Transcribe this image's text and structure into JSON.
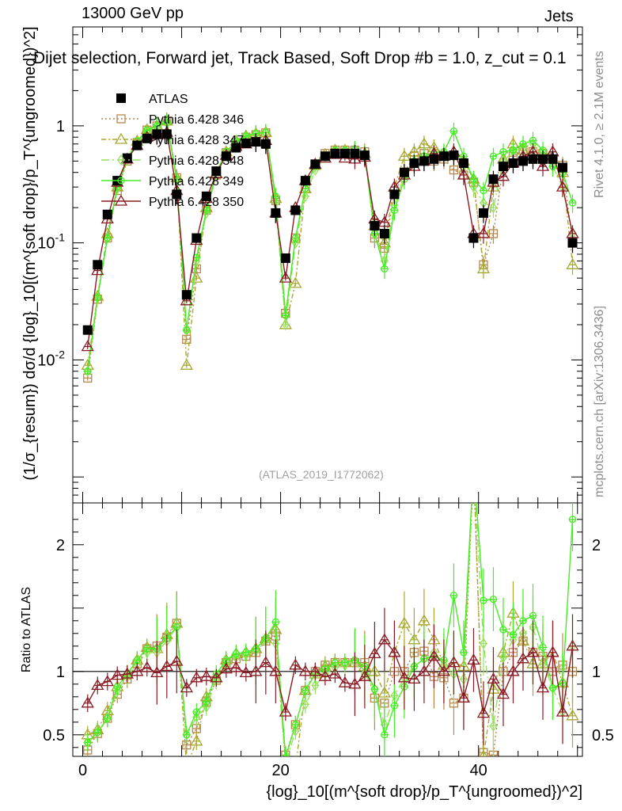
{
  "header": {
    "energy": "13000 GeV pp",
    "process": "Jets",
    "title": "Dijet selection, Forward jet, Track Based, Soft Drop #b = 1.0, z_cut = 0.1",
    "reference": "(ATLAS_2019_I1772062)"
  },
  "watermarks": {
    "rivet": "Rivet 4.1.0, ≥ 2.1M events",
    "site": "mcplots.cern.ch [arXiv:1306.3436]"
  },
  "chart_data": [
    {
      "type": "line",
      "panel": "main",
      "title": "Dijet selection, Forward jet, Track Based, Soft Drop #b = 1.0, z_cut = 0.1",
      "ylabel": "(1/σ_{resum}) dσ/d {log}_10[(m^{soft drop}/p_T^{ungroomed})^2]",
      "xlabel": "{log}_10[(m^{soft drop}/p_T^{ungroomed})^2]",
      "yscale": "log",
      "xlim": [
        -1,
        50.5
      ],
      "ylim": [
        0.0006,
        7
      ],
      "y_ticks": [
        {
          "v": 0.01,
          "label": "10^-2"
        },
        {
          "v": 0.1,
          "label": "10^-1"
        },
        {
          "v": 1,
          "label": "1"
        }
      ],
      "x": [
        0.5,
        1.5,
        2.5,
        3.5,
        4.5,
        5.5,
        6.5,
        7.5,
        8.5,
        9.5,
        10.5,
        11.5,
        12.5,
        13.5,
        14.5,
        15.5,
        16.5,
        17.5,
        18.5,
        19.5,
        20.5,
        21.5,
        22.5,
        23.5,
        24.5,
        25.5,
        26.5,
        27.5,
        28.5,
        29.5,
        30.5,
        31.5,
        32.5,
        33.5,
        34.5,
        35.5,
        36.5,
        37.5,
        38.5,
        39.5,
        40.5,
        41.5,
        42.5,
        43.5,
        44.5,
        45.5,
        46.5,
        47.5,
        48.5,
        49.5
      ],
      "series": [
        {
          "name": "ATLAS",
          "color": "#000000",
          "marker": "square-filled",
          "values": [
            0.018,
            0.065,
            0.175,
            0.34,
            0.53,
            0.68,
            0.78,
            0.85,
            0.85,
            0.26,
            0.036,
            0.11,
            0.25,
            0.41,
            0.55,
            0.65,
            0.71,
            0.73,
            0.7,
            0.18,
            0.074,
            0.19,
            0.34,
            0.47,
            0.55,
            0.58,
            0.58,
            0.58,
            0.56,
            0.14,
            0.12,
            0.26,
            0.4,
            0.48,
            0.5,
            0.52,
            0.55,
            0.56,
            0.48,
            0.11,
            0.18,
            0.35,
            0.45,
            0.48,
            0.5,
            0.52,
            0.52,
            0.52,
            0.44,
            0.1
          ]
        },
        {
          "name": "Pythia 6.428 346",
          "color": "#b8864b",
          "marker": "square-open",
          "dash": "2,3",
          "values": [
            0.007,
            0.033,
            0.11,
            0.28,
            0.5,
            0.72,
            0.92,
            1.0,
            1.1,
            0.36,
            0.015,
            0.06,
            0.19,
            0.38,
            0.59,
            0.72,
            0.8,
            0.84,
            0.87,
            0.23,
            0.025,
            0.11,
            0.29,
            0.47,
            0.58,
            0.62,
            0.62,
            0.62,
            0.6,
            0.11,
            0.09,
            0.26,
            0.4,
            0.55,
            0.58,
            0.5,
            0.52,
            0.42,
            0.38,
            0.33,
            0.065,
            0.12,
            0.45,
            0.55,
            0.62,
            0.6,
            0.58,
            0.52,
            0.46,
            0.1
          ]
        },
        {
          "name": "Pythia 6.428 347",
          "color": "#a8a830",
          "marker": "triangle-open",
          "dash": "6,3,2,3",
          "values": [
            0.009,
            0.035,
            0.12,
            0.3,
            0.52,
            0.74,
            0.93,
            1.0,
            1.1,
            0.36,
            0.009,
            0.05,
            0.2,
            0.39,
            0.6,
            0.74,
            0.82,
            0.86,
            0.88,
            0.24,
            0.02,
            0.045,
            0.29,
            0.46,
            0.57,
            0.62,
            0.62,
            0.62,
            0.58,
            0.14,
            0.1,
            0.3,
            0.55,
            0.6,
            0.7,
            0.65,
            0.58,
            0.6,
            0.5,
            0.35,
            0.06,
            0.3,
            0.52,
            0.7,
            0.62,
            0.55,
            0.55,
            0.6,
            0.4,
            0.065
          ]
        },
        {
          "name": "Pythia 6.428 348",
          "color": "#99e060",
          "marker": "diamond-open",
          "dash": "10,4,2,4",
          "values": [
            0.008,
            0.034,
            0.11,
            0.29,
            0.51,
            0.72,
            0.9,
            0.98,
            1.05,
            0.35,
            0.018,
            0.07,
            0.18,
            0.38,
            0.58,
            0.72,
            0.8,
            0.85,
            0.87,
            0.22,
            0.02,
            0.1,
            0.25,
            0.42,
            0.54,
            0.6,
            0.61,
            0.62,
            0.55,
            0.12,
            0.07,
            0.21,
            0.38,
            0.5,
            0.55,
            0.6,
            0.58,
            0.55,
            0.45,
            0.3,
            0.22,
            0.2,
            0.5,
            0.6,
            0.65,
            0.7,
            0.55,
            0.45,
            0.3,
            0.12
          ]
        },
        {
          "name": "Pythia 6.428 349",
          "color": "#44ee22",
          "marker": "circle-cross",
          "dash": "",
          "values": [
            0.008,
            0.034,
            0.11,
            0.3,
            0.52,
            0.74,
            0.92,
            1.0,
            1.07,
            0.35,
            0.018,
            0.075,
            0.19,
            0.4,
            0.6,
            0.74,
            0.82,
            0.86,
            0.88,
            0.25,
            0.024,
            0.11,
            0.29,
            0.46,
            0.56,
            0.62,
            0.62,
            0.63,
            0.58,
            0.12,
            0.06,
            0.19,
            0.35,
            0.5,
            0.55,
            0.58,
            0.6,
            0.9,
            0.55,
            0.35,
            0.28,
            0.55,
            0.6,
            0.62,
            0.7,
            0.75,
            0.62,
            0.45,
            0.4,
            0.22
          ]
        },
        {
          "name": "Pythia 6.428 350",
          "color": "#8b1a24",
          "marker": "triangle-open",
          "dash": "",
          "values": [
            0.013,
            0.058,
            0.16,
            0.33,
            0.52,
            0.68,
            0.8,
            0.84,
            0.88,
            0.28,
            0.032,
            0.105,
            0.24,
            0.39,
            0.56,
            0.67,
            0.7,
            0.73,
            0.75,
            0.18,
            0.05,
            0.2,
            0.34,
            0.47,
            0.53,
            0.57,
            0.53,
            0.52,
            0.54,
            0.16,
            0.15,
            0.3,
            0.38,
            0.45,
            0.5,
            0.58,
            0.55,
            0.6,
            0.38,
            0.12,
            0.12,
            0.33,
            0.37,
            0.48,
            0.55,
            0.6,
            0.45,
            0.6,
            0.3,
            0.12
          ]
        }
      ]
    },
    {
      "type": "line",
      "panel": "ratio",
      "ylabel": "Ratio to ATLAS",
      "xlabel": "{log}_10[(m^{soft drop}/p_T^{ungroomed})^2]",
      "xlim": [
        -1,
        50.5
      ],
      "ylim": [
        0.33,
        2.33
      ],
      "y_ticks": [
        {
          "v": 0.5,
          "label": "0.5"
        },
        {
          "v": 1,
          "label": "1"
        },
        {
          "v": 2,
          "label": "2"
        }
      ],
      "x_ticks": [
        {
          "v": 0,
          "label": "0"
        },
        {
          "v": 20,
          "label": "20"
        },
        {
          "v": 40,
          "label": "40"
        }
      ],
      "reference_line": 1,
      "series": [
        {
          "name": "Pythia 6.428 346",
          "color": "#b8864b",
          "marker": "square-open",
          "dash": "2,3",
          "values": [
            0.38,
            0.51,
            0.63,
            0.82,
            0.94,
            1.06,
            1.18,
            1.2,
            1.27,
            1.38,
            0.42,
            0.55,
            0.76,
            0.93,
            1.07,
            1.1,
            1.12,
            1.15,
            1.24,
            1.28,
            0.34,
            0.58,
            0.85,
            1.0,
            1.05,
            1.07,
            1.07,
            1.07,
            1.07,
            0.79,
            0.75,
            1.0,
            1.0,
            1.15,
            1.16,
            0.96,
            0.95,
            0.75,
            0.79,
            3.0,
            0.36,
            0.34,
            1.0,
            1.15,
            1.24,
            1.15,
            1.12,
            1.0,
            1.05,
            1.0
          ]
        },
        {
          "name": "Pythia 6.428 347",
          "color": "#a8a830",
          "marker": "triangle-open",
          "dash": "6,3,2,3",
          "values": [
            0.5,
            0.54,
            0.69,
            0.88,
            0.98,
            1.09,
            1.19,
            1.18,
            1.29,
            1.38,
            0.25,
            0.45,
            0.8,
            0.95,
            1.09,
            1.14,
            1.15,
            1.18,
            1.26,
            1.33,
            0.27,
            0.24,
            0.85,
            0.98,
            1.04,
            1.07,
            1.07,
            1.07,
            1.04,
            1.0,
            0.83,
            1.15,
            1.38,
            1.25,
            1.4,
            1.25,
            1.05,
            1.07,
            1.04,
            3.2,
            0.33,
            0.86,
            1.15,
            1.46,
            1.24,
            1.06,
            1.06,
            1.15,
            0.91,
            0.65
          ]
        },
        {
          "name": "Pythia 6.428 348",
          "color": "#99e060",
          "marker": "diamond-open",
          "dash": "10,4,2,4",
          "values": [
            0.44,
            0.52,
            0.63,
            0.85,
            0.96,
            1.06,
            1.15,
            1.15,
            1.24,
            1.35,
            0.5,
            0.64,
            0.72,
            0.93,
            1.05,
            1.11,
            1.13,
            1.16,
            1.24,
            1.22,
            0.27,
            0.53,
            0.74,
            0.89,
            0.98,
            1.03,
            1.05,
            1.07,
            0.98,
            0.86,
            0.58,
            0.81,
            0.95,
            1.04,
            1.1,
            1.15,
            1.05,
            0.98,
            0.94,
            2.7,
            1.22,
            0.57,
            1.11,
            1.25,
            1.3,
            1.35,
            1.06,
            0.87,
            0.68,
            1.2
          ]
        },
        {
          "name": "Pythia 6.428 349",
          "color": "#44ee22",
          "marker": "circle-cross",
          "dash": "",
          "values": [
            0.44,
            0.52,
            0.63,
            0.88,
            0.98,
            1.09,
            1.18,
            1.18,
            1.26,
            1.35,
            0.5,
            0.68,
            0.76,
            0.98,
            1.09,
            1.14,
            1.15,
            1.18,
            1.26,
            1.39,
            0.32,
            0.58,
            0.85,
            0.98,
            1.02,
            1.07,
            1.07,
            1.09,
            1.04,
            0.86,
            0.5,
            0.73,
            0.88,
            1.04,
            1.1,
            1.12,
            1.09,
            1.6,
            1.15,
            3.2,
            1.56,
            1.57,
            1.33,
            1.29,
            1.4,
            1.44,
            1.19,
            0.87,
            0.91,
            2.2
          ]
        },
        {
          "name": "Pythia 6.428 350",
          "color": "#8b1a24",
          "marker": "triangle-open",
          "dash": "",
          "values": [
            0.75,
            0.89,
            0.92,
            0.97,
            0.98,
            1.0,
            1.03,
            0.99,
            1.04,
            1.08,
            0.87,
            0.95,
            0.96,
            0.95,
            1.02,
            1.03,
            0.99,
            1.0,
            1.07,
            1.0,
            0.68,
            1.05,
            1.0,
            1.0,
            0.96,
            0.98,
            0.91,
            0.9,
            0.96,
            1.14,
            1.25,
            1.15,
            0.95,
            0.94,
            1.0,
            1.12,
            1.0,
            1.07,
            0.79,
            1.09,
            0.67,
            0.94,
            0.82,
            1.0,
            1.1,
            1.15,
            0.87,
            1.15,
            0.68,
            1.2
          ]
        }
      ]
    }
  ]
}
